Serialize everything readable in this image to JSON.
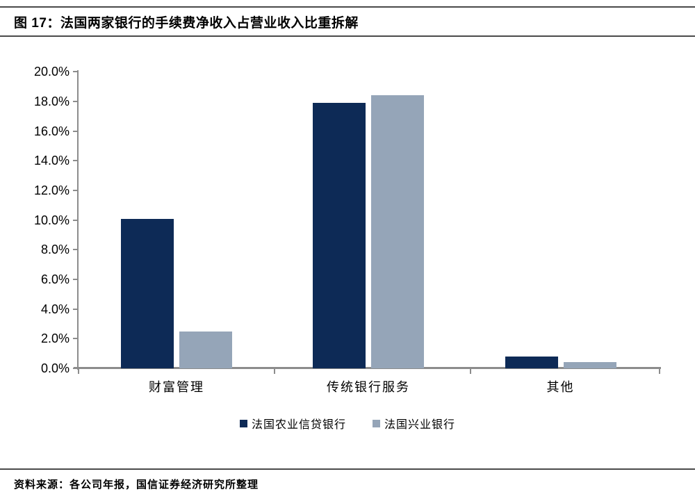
{
  "figure": {
    "title": "图 17：法国两家银行的手续费净收入占营业收入比重拆解",
    "source": "资料来源：各公司年报，国信证券经济研究所整理"
  },
  "colors": {
    "series_dark_navy": "#0d2a56",
    "series_gray_blue": "#95a5b8",
    "axis_gray": "#8c8c8c",
    "rule_dark_gray": "#4a4a4a",
    "text": "#000000",
    "background": "#ffffff"
  },
  "chart_data": {
    "type": "bar",
    "title": "法国两家银行的手续费净收入占营业收入比重拆解",
    "categories": [
      "财富管理",
      "传统银行服务",
      "其他"
    ],
    "series": [
      {
        "name": "法国农业信贷银行",
        "color": "#0d2a56",
        "values": [
          10.1,
          17.9,
          0.8
        ]
      },
      {
        "name": "法国兴业银行",
        "color": "#95a5b8",
        "values": [
          2.5,
          18.4,
          0.4
        ]
      }
    ],
    "ylabel": "",
    "xlabel": "",
    "ylim": [
      0,
      20
    ],
    "ytick_step": 2,
    "ytick_labels": [
      "0.0%",
      "2.0%",
      "4.0%",
      "6.0%",
      "8.0%",
      "10.0%",
      "12.0%",
      "14.0%",
      "16.0%",
      "18.0%",
      "20.0%"
    ],
    "grid": false,
    "legend_position": "bottom"
  }
}
